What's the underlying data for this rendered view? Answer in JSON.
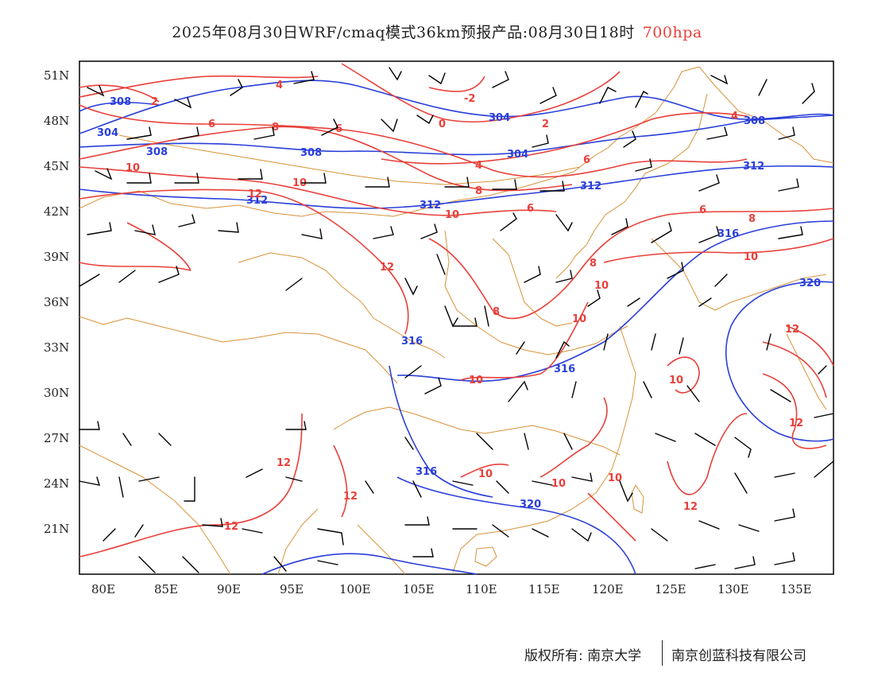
{
  "title": {
    "main": "2025年08月30日WRF/cmaq模式36km预报产品:08月30日18时",
    "level": "700hpa"
  },
  "map": {
    "lat_labels": [
      "51N",
      "48N",
      "45N",
      "42N",
      "39N",
      "36N",
      "33N",
      "30N",
      "27N",
      "24N",
      "21N"
    ],
    "lon_labels": [
      "80E",
      "85E",
      "90E",
      "95E",
      "100E",
      "105E",
      "110E",
      "115E",
      "120E",
      "125E",
      "130E",
      "135E"
    ],
    "blue_contour_labels": [
      "308",
      "304",
      "304",
      "308",
      "308",
      "304",
      "312",
      "312",
      "312",
      "308",
      "312",
      "316",
      "316",
      "316",
      "316",
      "320",
      "320"
    ],
    "red_contour_labels": [
      "4",
      "2",
      "6",
      "8",
      "6",
      "0",
      "2",
      "-2",
      "4",
      "6",
      "10",
      "12",
      "10",
      "12",
      "10",
      "8",
      "6",
      "6",
      "8",
      "8",
      "10",
      "10",
      "8",
      "10",
      "10",
      "10",
      "12",
      "10",
      "12",
      "12",
      "10",
      "10",
      "12",
      "12",
      "12",
      "4"
    ],
    "colors": {
      "temperature_contour": "#e8403a",
      "height_contour": "#2a3fd9",
      "boundary": "#d9923a",
      "wind_barb": "#000000"
    }
  },
  "footer": {
    "copyright": "版权所有: 南京大学",
    "company": "南京创蓝科技有限公司"
  }
}
